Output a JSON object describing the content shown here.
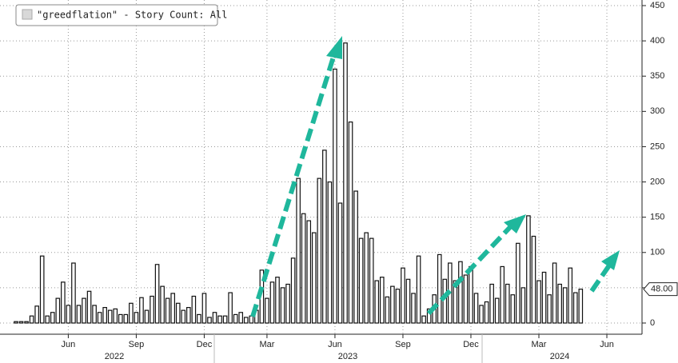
{
  "chart_data": {
    "type": "bar",
    "legend": "\"greedflation\" - Story Count: All",
    "categories": [
      null,
      null,
      null,
      null,
      null,
      null,
      null,
      null,
      null,
      null,
      "Jun",
      null,
      null,
      null,
      null,
      null,
      null,
      null,
      null,
      null,
      null,
      null,
      null,
      "Sep",
      null,
      null,
      null,
      null,
      null,
      null,
      null,
      null,
      null,
      null,
      null,
      null,
      "Dec",
      null,
      null,
      null,
      null,
      null,
      null,
      null,
      null,
      null,
      null,
      null,
      "Mar",
      null,
      null,
      null,
      null,
      null,
      null,
      null,
      null,
      null,
      null,
      null,
      null,
      "Jun",
      null,
      null,
      null,
      null,
      null,
      null,
      null,
      null,
      null,
      null,
      null,
      null,
      "Sep",
      null,
      null,
      null,
      null,
      null,
      null,
      null,
      null,
      null,
      null,
      null,
      null,
      "Dec",
      null,
      null,
      null,
      null,
      null,
      null,
      null,
      null,
      null,
      null,
      null,
      null,
      "Mar",
      null,
      null,
      null,
      null,
      null,
      null,
      null,
      null,
      null,
      null,
      null,
      null,
      "Jun"
    ],
    "values": [
      2,
      2,
      2,
      10,
      24,
      95,
      10,
      15,
      35,
      58,
      25,
      85,
      25,
      35,
      45,
      25,
      15,
      22,
      18,
      20,
      12,
      12,
      28,
      15,
      36,
      18,
      38,
      83,
      52,
      35,
      42,
      28,
      18,
      22,
      38,
      12,
      42,
      8,
      15,
      10,
      10,
      43,
      12,
      15,
      8,
      10,
      18,
      75,
      35,
      58,
      65,
      50,
      55,
      92,
      205,
      155,
      145,
      128,
      205,
      245,
      200,
      360,
      170,
      397,
      285,
      187,
      120,
      128,
      120,
      60,
      65,
      37,
      52,
      48,
      78,
      62,
      42,
      95,
      10,
      20,
      40,
      97,
      62,
      85,
      60,
      87,
      68,
      80,
      42,
      25,
      30,
      55,
      35,
      80,
      55,
      40,
      113,
      50,
      152,
      123,
      60,
      72,
      40,
      85,
      55,
      50,
      78,
      43,
      48,
      null,
      null,
      null,
      null,
      null
    ],
    "years": [
      "2022",
      "2023",
      "2024"
    ],
    "color": "#ffffff",
    "ylim": [
      0,
      450
    ],
    "yticks": [
      0,
      50,
      100,
      150,
      200,
      250,
      300,
      350,
      400,
      450
    ],
    "grid": true,
    "last_value": {
      "value": 48,
      "label": "48.00"
    }
  }
}
